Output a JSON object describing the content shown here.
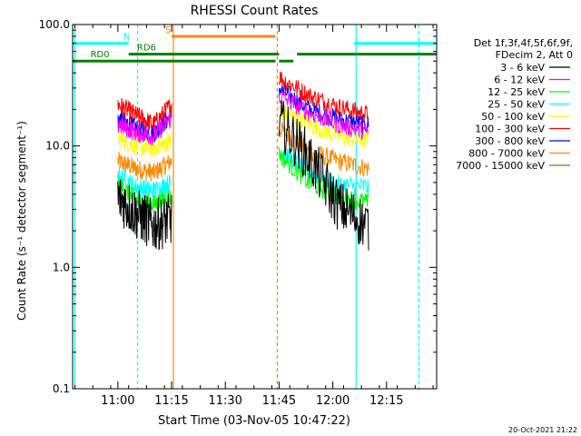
{
  "chart_data": {
    "type": "line",
    "title": "RHESSI Count Rates",
    "xlabel": "Start Time (03-Nov-05 10:47:22)",
    "ylabel": "Count Rate (s⁻¹ detector segment⁻¹)",
    "yscale": "log",
    "ylim": [
      0.1,
      100.0
    ],
    "xlim": [
      "10:47:22",
      "12:29:00"
    ],
    "x_ticks": [
      "11:00",
      "11:15",
      "11:30",
      "11:45",
      "12:00",
      "12:15"
    ],
    "y_ticks": [
      "0.1",
      "1.0",
      "10.0",
      "100.0"
    ],
    "legend_header": [
      "Det 1f,3f,4f,5f,6f,9f,",
      "FDecim 2, Att 0"
    ],
    "legend_placement": "right",
    "timestamp": "20-Oct-2021 21:22",
    "segments": [
      {
        "start": "11:00:00",
        "end": "11:15:00"
      },
      {
        "start": "11:45:00",
        "end": "12:10:00"
      }
    ],
    "series": [
      {
        "name": "3 - 6 keV",
        "color": "#000000",
        "values": [
          [
            3.8,
            2.8,
            2.2,
            2.5
          ],
          [
            16.0,
            8.0,
            3.2,
            2.2
          ]
        ]
      },
      {
        "name": "6 - 12 keV",
        "color": "#ff00ff",
        "values": [
          [
            15.0,
            13.0,
            12.0,
            17.0
          ],
          [
            26.0,
            19.0,
            15.0,
            13.0
          ]
        ]
      },
      {
        "name": "12 - 25 keV",
        "color": "#00ff00",
        "values": [
          [
            4.8,
            3.6,
            3.3,
            3.8
          ],
          [
            8.5,
            5.0,
            3.8,
            3.4
          ]
        ]
      },
      {
        "name": "25 - 50 keV",
        "color": "#00ffff",
        "values": [
          [
            5.8,
            4.6,
            4.3,
            5.0
          ],
          [
            9.5,
            6.0,
            4.8,
            4.6
          ]
        ]
      },
      {
        "name": "50 - 100 keV",
        "color": "#ffff00",
        "values": [
          [
            11.5,
            10.0,
            9.5,
            11.0
          ],
          [
            20.0,
            15.0,
            12.0,
            11.0
          ]
        ]
      },
      {
        "name": "100 - 300 keV",
        "color": "#ff0000",
        "values": [
          [
            22.0,
            18.0,
            15.0,
            22.0
          ],
          [
            37.0,
            26.0,
            21.0,
            18.0
          ]
        ]
      },
      {
        "name": "300 - 800 keV",
        "color": "#0000ff",
        "values": [
          [
            17.0,
            14.0,
            12.5,
            18.0
          ],
          [
            30.0,
            20.0,
            16.5,
            15.0
          ]
        ]
      },
      {
        "name": "800 - 7000 keV",
        "color": "#ff8800",
        "values": [
          [
            7.5,
            6.5,
            6.0,
            7.5
          ],
          [
            14.0,
            9.0,
            7.5,
            6.5
          ]
        ]
      },
      {
        "name": "7000 - 15000 keV",
        "color": "#aa6600",
        "values": [
          [],
          []
        ]
      }
    ],
    "status_bars": [
      {
        "label": "N",
        "color": "#00ffff",
        "y": 70.0,
        "spans": [
          [
            "10:47:22",
            "11:03:00"
          ],
          [
            "12:06:00",
            "12:29:00"
          ]
        ]
      },
      {
        "label": "S",
        "color": "#ff8800",
        "y": 80.0,
        "spans": [
          [
            "11:15:00",
            "11:44:00"
          ]
        ]
      },
      {
        "label": "RD0",
        "color": "#008000",
        "y": 50.0,
        "spans": [
          [
            "10:47:22",
            "11:44:00"
          ],
          [
            "11:45:00",
            "11:49:00"
          ]
        ]
      },
      {
        "label": "RD6",
        "color": "#008000",
        "y": 57.0,
        "spans": [
          [
            "11:03:00",
            "11:45:00"
          ],
          [
            "11:50:00",
            "12:29:00"
          ]
        ]
      }
    ],
    "vertical_lines": [
      {
        "time": "10:48:00",
        "color": "#00ffff",
        "style": "solid"
      },
      {
        "time": "11:05:30",
        "color": "#00ffff",
        "style": "dashed"
      },
      {
        "time": "11:15:30",
        "color": "#ff8800",
        "style": "solid"
      },
      {
        "time": "11:44:30",
        "color": "#ff8800",
        "style": "dashed"
      },
      {
        "time": "12:06:30",
        "color": "#00ffff",
        "style": "solid"
      },
      {
        "time": "12:24:00",
        "color": "#00ffff",
        "style": "dashed"
      }
    ],
    "grid": false
  }
}
